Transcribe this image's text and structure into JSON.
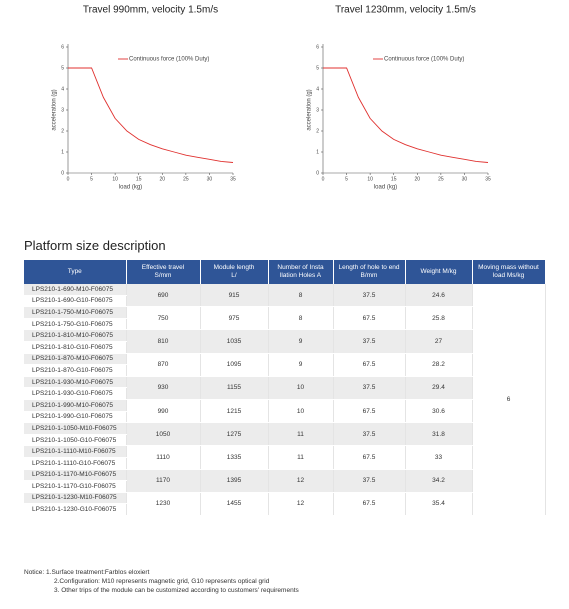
{
  "chart_data": [
    {
      "type": "line",
      "title": "Travel 990mm, velocity 1.5m/s",
      "xlabel": "load (kg)",
      "ylabel": "acceleration (g)",
      "x": [
        0,
        5,
        7.5,
        10,
        12.5,
        15,
        17.5,
        20,
        22.5,
        25,
        27.5,
        30,
        32.5,
        35
      ],
      "series": [
        {
          "name": "Continuous force (100% Duty)",
          "color": "#e0312f",
          "values": [
            5,
            5,
            3.6,
            2.6,
            2.0,
            1.6,
            1.35,
            1.15,
            1.0,
            0.85,
            0.75,
            0.65,
            0.55,
            0.5
          ]
        }
      ],
      "xlim": [
        0,
        35
      ],
      "ylim": [
        0,
        6
      ],
      "xticks": [
        0,
        5,
        10,
        15,
        20,
        25,
        30,
        35
      ],
      "yticks": [
        0,
        1,
        2,
        3,
        4,
        5,
        6
      ]
    },
    {
      "type": "line",
      "title": "Travel 1230mm, velocity 1.5m/s",
      "xlabel": "load (kg)",
      "ylabel": "acceleration (g)",
      "x": [
        0,
        5,
        7.5,
        10,
        12.5,
        15,
        17.5,
        20,
        22.5,
        25,
        27.5,
        30,
        32.5,
        35
      ],
      "series": [
        {
          "name": "Continuous force (100% Duty)",
          "color": "#e0312f",
          "values": [
            5,
            5,
            3.6,
            2.6,
            2.0,
            1.6,
            1.35,
            1.15,
            1.0,
            0.85,
            0.75,
            0.65,
            0.55,
            0.5
          ]
        }
      ],
      "xlim": [
        0,
        35
      ],
      "ylim": [
        0,
        6
      ],
      "xticks": [
        0,
        5,
        10,
        15,
        20,
        25,
        30,
        35
      ],
      "yticks": [
        0,
        1,
        2,
        3,
        4,
        5,
        6
      ]
    }
  ],
  "section_title": "Platform size description",
  "table": {
    "headers": [
      "Type",
      "Effective travel\nS/mm",
      "Module length\nL/",
      "Number of Insta\nllation Holes A",
      "Length of hole to end\nB/mm",
      "Weight M/kg",
      "Moving mass without\nload Ms/kg"
    ],
    "moving_mass": 6,
    "groups": [
      {
        "types": [
          "LPS210-1-690-M10-F06075",
          "LPS210-1-690-G10-F06075"
        ],
        "travel": 690,
        "length": 915,
        "holes": 8,
        "b": 37.5,
        "weight": 24.6
      },
      {
        "types": [
          "LPS210-1-750-M10-F06075",
          "LPS210-1-750-G10-F06075"
        ],
        "travel": 750,
        "length": 975,
        "holes": 8,
        "b": 67.5,
        "weight": 25.8
      },
      {
        "types": [
          "LPS210-1-810-M10-F06075",
          "LPS210-1-810-G10-F06075"
        ],
        "travel": 810,
        "length": 1035,
        "holes": 9,
        "b": 37.5,
        "weight": 27
      },
      {
        "types": [
          "LPS210-1-870-M10-F06075",
          "LPS210-1-870-G10-F06075"
        ],
        "travel": 870,
        "length": 1095,
        "holes": 9,
        "b": 67.5,
        "weight": 28.2
      },
      {
        "types": [
          "LPS210-1-930-M10-F06075",
          "LPS210-1-930-G10-F06075"
        ],
        "travel": 930,
        "length": 1155,
        "holes": 10,
        "b": 37.5,
        "weight": 29.4
      },
      {
        "types": [
          "LPS210-1-990-M10-F06075",
          "LPS210-1-990-G10-F06075"
        ],
        "travel": 990,
        "length": 1215,
        "holes": 10,
        "b": 67.5,
        "weight": 30.6
      },
      {
        "types": [
          "LPS210-1-1050-M10-F06075",
          "LPS210-1-1050-G10-F06075"
        ],
        "travel": 1050,
        "length": 1275,
        "holes": 11,
        "b": 37.5,
        "weight": 31.8
      },
      {
        "types": [
          "LPS210-1-1110-M10-F06075",
          "LPS210-1-1110-G10-F06075"
        ],
        "travel": 1110,
        "length": 1335,
        "holes": 11,
        "b": 67.5,
        "weight": 33
      },
      {
        "types": [
          "LPS210-1-1170-M10-F06075",
          "LPS210-1-1170-G10-F06075"
        ],
        "travel": 1170,
        "length": 1395,
        "holes": 12,
        "b": 37.5,
        "weight": 34.2
      },
      {
        "types": [
          "LPS210-1-1230-M10-F06075",
          "LPS210-1-1230-G10-F06075"
        ],
        "travel": 1230,
        "length": 1455,
        "holes": 12,
        "b": 67.5,
        "weight": 35.4
      }
    ]
  },
  "notes": {
    "label": "Notice:",
    "items": [
      "1.Surface treatment:Farblos eloxiert",
      "2.Configuration: M10 represents magnetic grid, G10 represents optical grid",
      "3. Other trips of the module can be customized according to customers' requirements"
    ]
  }
}
